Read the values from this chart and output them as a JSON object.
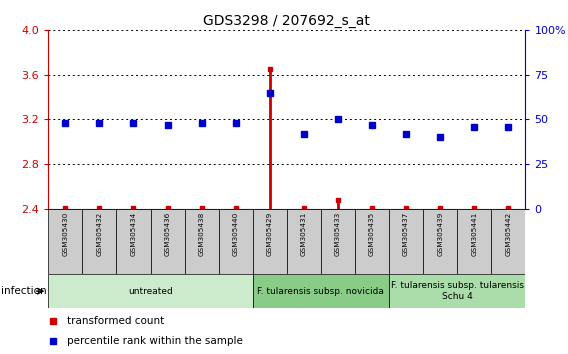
{
  "title": "GDS3298 / 207692_s_at",
  "samples": [
    "GSM305430",
    "GSM305432",
    "GSM305434",
    "GSM305436",
    "GSM305438",
    "GSM305440",
    "GSM305429",
    "GSM305431",
    "GSM305433",
    "GSM305435",
    "GSM305437",
    "GSM305439",
    "GSM305441",
    "GSM305442"
  ],
  "red_values": [
    2.41,
    2.41,
    2.41,
    2.41,
    2.41,
    2.41,
    3.65,
    2.41,
    2.48,
    2.41,
    2.41,
    2.41,
    2.41,
    2.41
  ],
  "blue_values": [
    48,
    48,
    48,
    47,
    48,
    48,
    65,
    42,
    50,
    47,
    42,
    40,
    46,
    46
  ],
  "ylim_left": [
    2.4,
    4.0
  ],
  "ylim_right": [
    0,
    100
  ],
  "yticks_left": [
    2.4,
    2.8,
    3.2,
    3.6,
    4.0
  ],
  "yticks_right": [
    0,
    25,
    50,
    75,
    100
  ],
  "groups": [
    {
      "label": "untreated",
      "start": 0,
      "end": 5,
      "color": "#cceacc"
    },
    {
      "label": "F. tularensis subsp. novicida",
      "start": 6,
      "end": 9,
      "color": "#88cc88"
    },
    {
      "label": "F. tularensis subsp. tularensis\nSchu 4",
      "start": 10,
      "end": 13,
      "color": "#aaddaa"
    }
  ],
  "infection_label": "infection",
  "legend_red": "transformed count",
  "legend_blue": "percentile rank within the sample",
  "red_color": "#cc0000",
  "blue_color": "#0000cc",
  "bar_bg_color": "#cccccc",
  "title_fontsize": 10,
  "tick_fontsize": 8,
  "sample_fontsize": 5.2,
  "group_fontsize": 6.5,
  "legend_fontsize": 7.5,
  "infection_fontsize": 7.5
}
